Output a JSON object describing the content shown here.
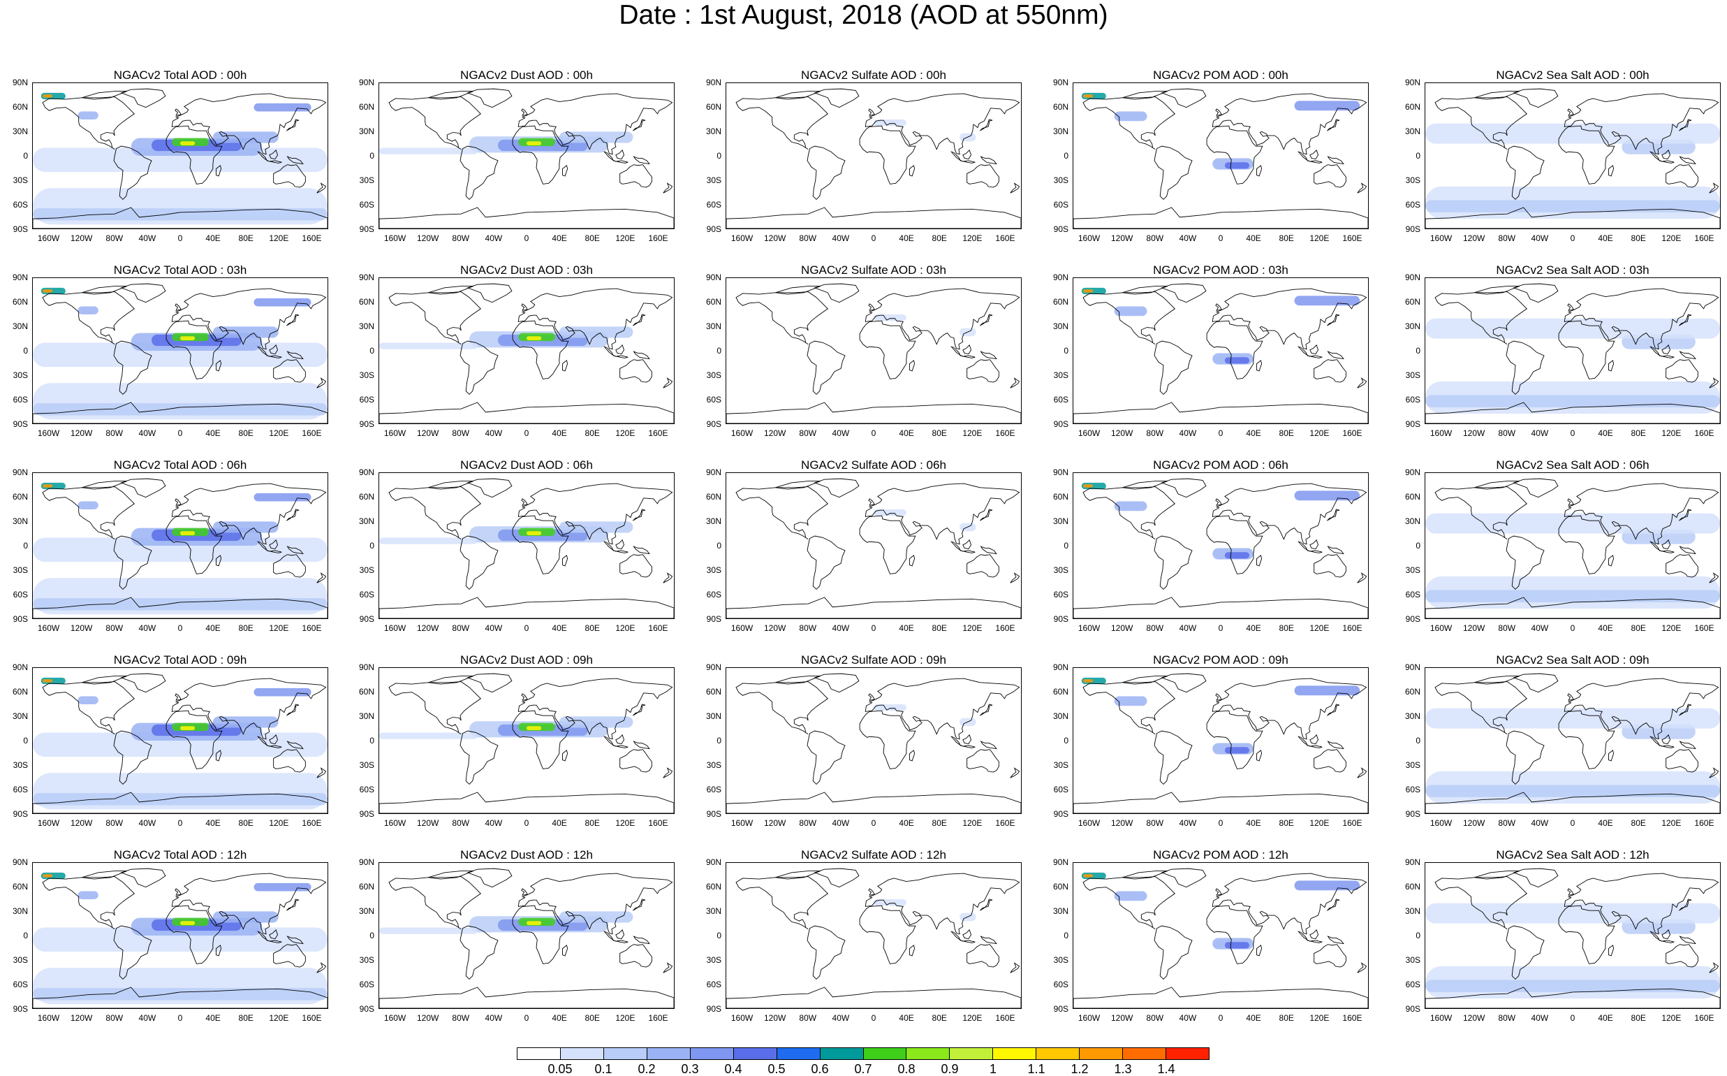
{
  "title": "Date : 1st August, 2018 (AOD at 550nm)",
  "lat_labels": [
    "90N",
    "60N",
    "30N",
    "0",
    "30S",
    "60S",
    "90S"
  ],
  "lon_labels": [
    "160W",
    "120W",
    "80W",
    "40W",
    "0",
    "40E",
    "80E",
    "120E",
    "160E"
  ],
  "colorbar": {
    "labels": [
      "0.05",
      "0.1",
      "0.2",
      "0.3",
      "0.4",
      "0.5",
      "0.6",
      "0.7",
      "0.8",
      "0.9",
      "1",
      "1.1",
      "1.2",
      "1.3",
      "1.4"
    ],
    "colors": [
      "#ffffff",
      "#d6e2fb",
      "#b8cdf7",
      "#9bb3f4",
      "#7f97f0",
      "#5b6ee9",
      "#1f6cf0",
      "#009a9a",
      "#3fcf1a",
      "#8be81b",
      "#c2f03a",
      "#fff700",
      "#ffc800",
      "#ff9900",
      "#ff6d00",
      "#ff2200"
    ]
  },
  "rows": [
    {
      "hour": "00h",
      "titles": [
        "NGACv2 Total AOD : 00h",
        "NGACv2 Dust AOD : 00h",
        "NGACv2 Sulfate AOD : 00h",
        "NGACv2 POM AOD : 00h",
        "NGACv2 Sea Salt AOD : 00h"
      ]
    },
    {
      "hour": "03h",
      "titles": [
        "NGACv2 Total AOD : 03h",
        "NGACv2 Dust AOD : 03h",
        "NGACv2 Sulfate AOD : 03h",
        "NGACv2 POM AOD : 03h",
        "NGACv2 Sea Salt AOD : 03h"
      ]
    },
    {
      "hour": "06h",
      "titles": [
        "NGACv2 Total AOD : 06h",
        "NGACv2 Dust AOD : 06h",
        "NGACv2 Sulfate AOD : 06h",
        "NGACv2 POM AOD : 06h",
        "NGACv2 Sea Salt AOD : 06h"
      ]
    },
    {
      "hour": "09h",
      "titles": [
        "NGACv2 Total AOD : 09h",
        "NGACv2 Dust AOD : 09h",
        "NGACv2 Sulfate AOD : 09h",
        "NGACv2 POM AOD : 09h",
        "NGACv2 Sea Salt  AOD : 09h"
      ]
    },
    {
      "hour": "12h",
      "titles": [
        "NGACv2 Total AOD :  12h",
        "NGACv2 Dust AOD : 12h",
        "NGACv2 Sulfate AOD : 12h",
        "NGACv2 POM  AOD : 12h",
        "NGACv2 Sea Salt AOD : 12h"
      ]
    }
  ],
  "column_species": [
    "Total",
    "Dust",
    "Sulfate",
    "POM",
    "Sea Salt"
  ]
}
